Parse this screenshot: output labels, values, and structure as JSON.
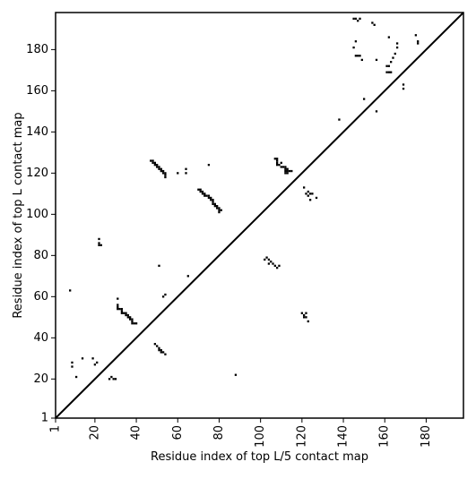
{
  "chart_data": {
    "type": "scatter",
    "title": "",
    "xlabel": "Residue index of top L/5 contact map",
    "ylabel": "Residue index of top L contact map",
    "xlim": [
      1,
      198
    ],
    "ylim": [
      1,
      198
    ],
    "xticks": [
      1,
      20,
      40,
      60,
      80,
      100,
      120,
      140,
      160,
      180
    ],
    "yticks": [
      1,
      20,
      40,
      60,
      80,
      100,
      120,
      140,
      160,
      180
    ],
    "diagonal": true,
    "marker": "square",
    "color": "#000000",
    "series": [
      {
        "points": [
          [
            8,
            63
          ],
          [
            9,
            26
          ],
          [
            9,
            28
          ],
          [
            11,
            21
          ],
          [
            14,
            30
          ],
          [
            19,
            30
          ],
          [
            20,
            27
          ],
          [
            21,
            28
          ],
          [
            22,
            85
          ],
          [
            22,
            86
          ],
          [
            23,
            85
          ],
          [
            22,
            88
          ],
          [
            27,
            20
          ],
          [
            28,
            21
          ],
          [
            29,
            20
          ],
          [
            30,
            20
          ],
          [
            31,
            59
          ],
          [
            31,
            56
          ],
          [
            31,
            55
          ],
          [
            31,
            54
          ],
          [
            32,
            54
          ],
          [
            33,
            54
          ],
          [
            33,
            53
          ],
          [
            33,
            52
          ],
          [
            34,
            52
          ],
          [
            35,
            52
          ],
          [
            35,
            51
          ],
          [
            36,
            51
          ],
          [
            36,
            50
          ],
          [
            37,
            50
          ],
          [
            37,
            49
          ],
          [
            38,
            49
          ],
          [
            38,
            48
          ],
          [
            38,
            47
          ],
          [
            39,
            47
          ],
          [
            40,
            47
          ],
          [
            47,
            126
          ],
          [
            48,
            126
          ],
          [
            48,
            125
          ],
          [
            49,
            125
          ],
          [
            49,
            124
          ],
          [
            50,
            124
          ],
          [
            50,
            123
          ],
          [
            51,
            123
          ],
          [
            51,
            122
          ],
          [
            52,
            122
          ],
          [
            52,
            121
          ],
          [
            53,
            121
          ],
          [
            53,
            120
          ],
          [
            54,
            120
          ],
          [
            54,
            119
          ],
          [
            54,
            118
          ],
          [
            49,
            37
          ],
          [
            50,
            36
          ],
          [
            51,
            35
          ],
          [
            51,
            34
          ],
          [
            52,
            34
          ],
          [
            52,
            33
          ],
          [
            53,
            33
          ],
          [
            54,
            32
          ],
          [
            51,
            75
          ],
          [
            53,
            60
          ],
          [
            54,
            61
          ],
          [
            60,
            120
          ],
          [
            64,
            120
          ],
          [
            64,
            122
          ],
          [
            65,
            70
          ],
          [
            75,
            124
          ],
          [
            70,
            112
          ],
          [
            71,
            112
          ],
          [
            71,
            111
          ],
          [
            72,
            111
          ],
          [
            72,
            110
          ],
          [
            73,
            110
          ],
          [
            73,
            109
          ],
          [
            74,
            109
          ],
          [
            75,
            109
          ],
          [
            75,
            108
          ],
          [
            76,
            108
          ],
          [
            76,
            107
          ],
          [
            77,
            107
          ],
          [
            77,
            106
          ],
          [
            77,
            105
          ],
          [
            78,
            105
          ],
          [
            78,
            104
          ],
          [
            79,
            104
          ],
          [
            79,
            103
          ],
          [
            80,
            103
          ],
          [
            80,
            102
          ],
          [
            81,
            102
          ],
          [
            80,
            101
          ],
          [
            88,
            22
          ],
          [
            102,
            78
          ],
          [
            103,
            79
          ],
          [
            104,
            78
          ],
          [
            105,
            77
          ],
          [
            104,
            76
          ],
          [
            106,
            76
          ],
          [
            107,
            75
          ],
          [
            108,
            74
          ],
          [
            109,
            75
          ],
          [
            107,
            127
          ],
          [
            108,
            127
          ],
          [
            108,
            126
          ],
          [
            108,
            125
          ],
          [
            108,
            124
          ],
          [
            109,
            124
          ],
          [
            110,
            125
          ],
          [
            110,
            123
          ],
          [
            111,
            123
          ],
          [
            112,
            123
          ],
          [
            112,
            122
          ],
          [
            113,
            122
          ],
          [
            112,
            121
          ],
          [
            113,
            121
          ],
          [
            114,
            121
          ],
          [
            112,
            120
          ],
          [
            113,
            120
          ],
          [
            115,
            121
          ],
          [
            120,
            52
          ],
          [
            121,
            51
          ],
          [
            122,
            50
          ],
          [
            121,
            50
          ],
          [
            122,
            52
          ],
          [
            123,
            48
          ],
          [
            121,
            113
          ],
          [
            122,
            110
          ],
          [
            123,
            111
          ],
          [
            123,
            109
          ],
          [
            124,
            110
          ],
          [
            124,
            107
          ],
          [
            125,
            110
          ],
          [
            127,
            108
          ],
          [
            138,
            146
          ],
          [
            145,
            195
          ],
          [
            146,
            195
          ],
          [
            147,
            194
          ],
          [
            148,
            195
          ],
          [
            145,
            181
          ],
          [
            146,
            184
          ],
          [
            146,
            177
          ],
          [
            147,
            177
          ],
          [
            148,
            177
          ],
          [
            149,
            175
          ],
          [
            150,
            156
          ],
          [
            154,
            193
          ],
          [
            155,
            192
          ],
          [
            156,
            150
          ],
          [
            156,
            175
          ],
          [
            161,
            172
          ],
          [
            162,
            172
          ],
          [
            161,
            169
          ],
          [
            162,
            169
          ],
          [
            163,
            169
          ],
          [
            162,
            186
          ],
          [
            163,
            174
          ],
          [
            164,
            176
          ],
          [
            165,
            178
          ],
          [
            166,
            183
          ],
          [
            166,
            181
          ],
          [
            169,
            161
          ],
          [
            169,
            163
          ],
          [
            175,
            187
          ],
          [
            176,
            183
          ],
          [
            176,
            184
          ]
        ]
      }
    ]
  }
}
